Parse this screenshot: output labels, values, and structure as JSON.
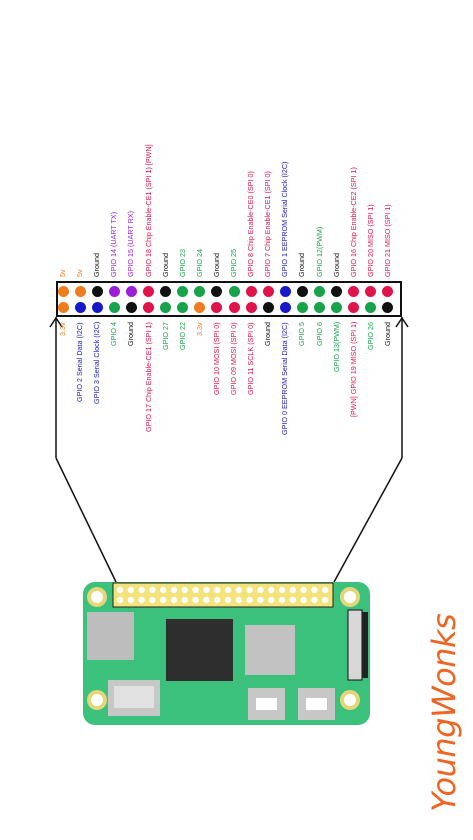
{
  "colors": {
    "power": "#f07c1e",
    "ground": "#111111",
    "gpio": "#16a34a",
    "i2c": "#1818c8",
    "uart": "#9b1fd9",
    "spi_pwm": "#e0134a",
    "board": "#3cc17d",
    "brand": "#f06423"
  },
  "pins": [
    {
      "top": {
        "label": "5v",
        "type": "power"
      },
      "bottom": {
        "label": "3.3v",
        "type": "power"
      }
    },
    {
      "top": {
        "label": "5v",
        "type": "power"
      },
      "bottom": {
        "label": "GPIO 2 Serial Data (I2C)",
        "type": "i2c"
      }
    },
    {
      "top": {
        "label": "Ground",
        "type": "ground"
      },
      "bottom": {
        "label": "GPIO 3 Serial Clock (I2C)",
        "type": "i2c"
      }
    },
    {
      "top": {
        "label": "GPIO 14 (UART TX)",
        "type": "uart"
      },
      "bottom": {
        "label": "GPIO 4",
        "type": "gpio"
      }
    },
    {
      "top": {
        "label": "GPIO 15 (UART RX)",
        "type": "uart"
      },
      "bottom": {
        "label": "Ground",
        "type": "ground"
      }
    },
    {
      "top": {
        "label": "GPIO 18 Chip Enable-CE1 (SPI 1) [PWN]",
        "type": "spi_pwm"
      },
      "bottom": {
        "label": "GPIO 17 Chip Enable-CE1 (SPI 1)",
        "type": "spi_pwm"
      }
    },
    {
      "top": {
        "label": "Ground",
        "type": "ground"
      },
      "bottom": {
        "label": "GPIO 27",
        "type": "gpio"
      }
    },
    {
      "top": {
        "label": "GPIO 23",
        "type": "gpio"
      },
      "bottom": {
        "label": "GPIO 22",
        "type": "gpio"
      }
    },
    {
      "top": {
        "label": "GPIO 24",
        "type": "gpio"
      },
      "bottom": {
        "label": "3.3v",
        "type": "power"
      }
    },
    {
      "top": {
        "label": "Ground",
        "type": "ground"
      },
      "bottom": {
        "label": "GPIO 10 MOSI (SPI 0)",
        "type": "spi_pwm"
      }
    },
    {
      "top": {
        "label": "GPIO 25",
        "type": "gpio"
      },
      "bottom": {
        "label": "GPIO 09 MOSI (SPI 0)",
        "type": "spi_pwm"
      }
    },
    {
      "top": {
        "label": "GPIO 8 Chip Enable-CE0 (SPI 0)",
        "type": "spi_pwm"
      },
      "bottom": {
        "label": "GPIO 11 SCLK (SPI 0)",
        "type": "spi_pwm"
      }
    },
    {
      "top": {
        "label": "GPIO 7 Chip Enable-CE1 (SPI 0)",
        "type": "spi_pwm"
      },
      "bottom": {
        "label": "Ground",
        "type": "ground"
      }
    },
    {
      "top": {
        "label": "GPIO 1 EEPROM Serial Clock (I2C)",
        "type": "i2c"
      },
      "bottom": {
        "label": "GPIO 0 EEPROM Serial Data (I2C)",
        "type": "i2c"
      }
    },
    {
      "top": {
        "label": "Ground",
        "type": "ground"
      },
      "bottom": {
        "label": "GPIO 5",
        "type": "gpio"
      }
    },
    {
      "top": {
        "label": "GPIO 12(PWM)",
        "type": "gpio"
      },
      "bottom": {
        "label": "GPIO 6",
        "type": "gpio"
      }
    },
    {
      "top": {
        "label": "Ground",
        "type": "ground"
      },
      "bottom": {
        "label": "GPIO 13(PWM)",
        "type": "gpio"
      }
    },
    {
      "top": {
        "label": "GPIO 16 Chip Enable-CE2 (SPI 1)",
        "type": "spi_pwm"
      },
      "bottom": {
        "label": "[PWN] GPIO 19 MISO (SPI 1)",
        "type": "spi_pwm"
      }
    },
    {
      "top": {
        "label": "GPIO 20 MISO (SPI 1)",
        "type": "spi_pwm"
      },
      "bottom": {
        "label": "GPIO 26",
        "type": "gpio"
      }
    },
    {
      "top": {
        "label": "GPIO 21 MISO (SPI 1)",
        "type": "spi_pwm"
      },
      "bottom": {
        "label": "Ground",
        "type": "ground"
      }
    }
  ],
  "brand": {
    "name": "YoungWonks"
  }
}
